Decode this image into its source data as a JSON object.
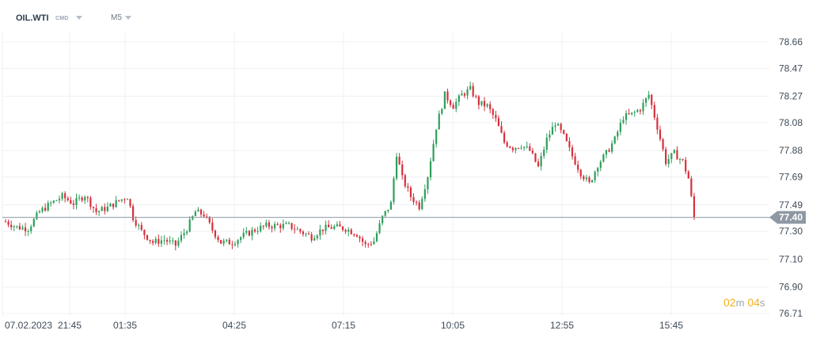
{
  "header": {
    "symbol": "OIL.WTI",
    "badge": "CMD",
    "timeframe": "M5"
  },
  "timer": {
    "minutes": "02",
    "minutes_unit": "m",
    "seconds": "04",
    "seconds_unit": "s"
  },
  "colors": {
    "up": "#2f9e5c",
    "down": "#d6303c",
    "grid": "#eef0f3",
    "axis_text": "#3d4a57",
    "last_line": "#8e98a3",
    "last_label_bg": "#8e98a3",
    "timer": "#f2b21b"
  },
  "chart_data": {
    "type": "candlestick",
    "symbol": "OIL.WTI",
    "timeframe": "M5",
    "ylim": [
      76.71,
      78.66
    ],
    "y_ticks": [
      "78.66",
      "78.47",
      "78.27",
      "78.08",
      "77.88",
      "77.69",
      "77.49",
      "77.30",
      "77.10",
      "76.90",
      "76.71"
    ],
    "x_ticks": [
      "07.02.2023",
      "21:45",
      "01:35",
      "04:25",
      "07:15",
      "10:05",
      "12:55",
      "15:45"
    ],
    "last_price": "77.40",
    "grid": true,
    "series": [
      {
        "price_path": [
          {
            "bar": 0,
            "price": 77.37
          },
          {
            "bar": 4,
            "price": 77.33
          },
          {
            "bar": 8,
            "price": 77.32
          },
          {
            "bar": 12,
            "price": 77.44
          },
          {
            "bar": 16,
            "price": 77.5
          },
          {
            "bar": 20,
            "price": 77.55
          },
          {
            "bar": 24,
            "price": 77.5
          },
          {
            "bar": 28,
            "price": 77.56
          },
          {
            "bar": 32,
            "price": 77.44
          },
          {
            "bar": 36,
            "price": 77.47
          },
          {
            "bar": 40,
            "price": 77.52
          },
          {
            "bar": 43,
            "price": 77.55
          },
          {
            "bar": 45,
            "price": 77.4
          },
          {
            "bar": 48,
            "price": 77.3
          },
          {
            "bar": 52,
            "price": 77.22
          },
          {
            "bar": 56,
            "price": 77.24
          },
          {
            "bar": 60,
            "price": 77.2
          },
          {
            "bar": 64,
            "price": 77.32
          },
          {
            "bar": 67,
            "price": 77.44
          },
          {
            "bar": 70,
            "price": 77.42
          },
          {
            "bar": 73,
            "price": 77.31
          },
          {
            "bar": 76,
            "price": 77.22
          },
          {
            "bar": 80,
            "price": 77.22
          },
          {
            "bar": 84,
            "price": 77.27
          },
          {
            "bar": 88,
            "price": 77.31
          },
          {
            "bar": 92,
            "price": 77.34
          },
          {
            "bar": 96,
            "price": 77.34
          },
          {
            "bar": 100,
            "price": 77.34
          },
          {
            "bar": 104,
            "price": 77.3
          },
          {
            "bar": 108,
            "price": 77.26
          },
          {
            "bar": 112,
            "price": 77.32
          },
          {
            "bar": 116,
            "price": 77.33
          },
          {
            "bar": 120,
            "price": 77.32
          },
          {
            "bar": 124,
            "price": 77.28
          },
          {
            "bar": 127,
            "price": 77.2
          },
          {
            "bar": 130,
            "price": 77.23
          },
          {
            "bar": 133,
            "price": 77.4
          },
          {
            "bar": 136,
            "price": 77.5
          },
          {
            "bar": 138,
            "price": 77.86
          },
          {
            "bar": 140,
            "price": 77.68
          },
          {
            "bar": 143,
            "price": 77.55
          },
          {
            "bar": 146,
            "price": 77.48
          },
          {
            "bar": 149,
            "price": 77.7
          },
          {
            "bar": 152,
            "price": 78.05
          },
          {
            "bar": 155,
            "price": 78.28
          },
          {
            "bar": 158,
            "price": 78.2
          },
          {
            "bar": 161,
            "price": 78.28
          },
          {
            "bar": 164,
            "price": 78.32
          },
          {
            "bar": 167,
            "price": 78.22
          },
          {
            "bar": 170,
            "price": 78.2
          },
          {
            "bar": 173,
            "price": 78.1
          },
          {
            "bar": 176,
            "price": 77.94
          },
          {
            "bar": 179,
            "price": 77.9
          },
          {
            "bar": 182,
            "price": 77.92
          },
          {
            "bar": 185,
            "price": 77.88
          },
          {
            "bar": 188,
            "price": 77.76
          },
          {
            "bar": 191,
            "price": 77.96
          },
          {
            "bar": 194,
            "price": 78.08
          },
          {
            "bar": 197,
            "price": 77.98
          },
          {
            "bar": 200,
            "price": 77.84
          },
          {
            "bar": 203,
            "price": 77.72
          },
          {
            "bar": 206,
            "price": 77.64
          },
          {
            "bar": 209,
            "price": 77.78
          },
          {
            "bar": 212,
            "price": 77.86
          },
          {
            "bar": 215,
            "price": 77.96
          },
          {
            "bar": 218,
            "price": 78.12
          },
          {
            "bar": 221,
            "price": 78.14
          },
          {
            "bar": 224,
            "price": 78.18
          },
          {
            "bar": 227,
            "price": 78.28
          },
          {
            "bar": 230,
            "price": 78.05
          },
          {
            "bar": 233,
            "price": 77.8
          },
          {
            "bar": 236,
            "price": 77.86
          },
          {
            "bar": 239,
            "price": 77.8
          },
          {
            "bar": 241,
            "price": 77.68
          },
          {
            "bar": 243,
            "price": 77.4
          }
        ]
      }
    ]
  }
}
